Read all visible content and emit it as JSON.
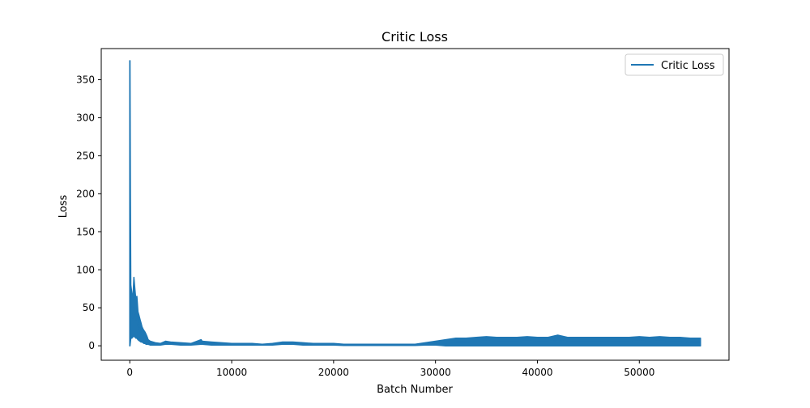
{
  "chart_data": {
    "type": "line",
    "title": "Critic Loss",
    "xlabel": "Batch Number",
    "ylabel": "Loss",
    "xlim": [
      -2800,
      58800
    ],
    "ylim": [
      -19,
      391
    ],
    "xticks": [
      0,
      10000,
      20000,
      30000,
      40000,
      50000
    ],
    "yticks": [
      0,
      50,
      100,
      150,
      200,
      250,
      300,
      350
    ],
    "grid": false,
    "legend_position": "top-right",
    "series": [
      {
        "name": "Critic Loss",
        "color": "#1f77b4",
        "x": [
          0,
          20,
          60,
          100,
          200,
          300,
          400,
          500,
          600,
          700,
          800,
          900,
          1000,
          1100,
          1200,
          1300,
          1400,
          1500,
          1600,
          1700,
          1800,
          2000,
          2500,
          3000,
          3500,
          4000,
          5000,
          6000,
          7000,
          7100,
          8000,
          9000,
          10000,
          11000,
          12000,
          13000,
          14000,
          15000,
          16000,
          17000,
          18000,
          19000,
          20000,
          21000,
          22000,
          23000,
          24000,
          25000,
          26000,
          27000,
          28000,
          29000,
          30000,
          31000,
          32000,
          33000,
          34000,
          35000,
          36000,
          37000,
          38000,
          39000,
          40000,
          41000,
          42000,
          43000,
          44000,
          45000,
          46000,
          47000,
          48000,
          49000,
          50000,
          51000,
          52000,
          53000,
          54000,
          55000,
          56000
        ],
        "y_high": [
          375,
          375,
          200,
          80,
          70,
          60,
          90,
          75,
          60,
          65,
          45,
          40,
          35,
          30,
          25,
          22,
          20,
          18,
          15,
          12,
          8,
          6,
          4,
          3,
          6,
          5,
          4,
          3,
          8,
          6,
          5,
          4,
          3,
          3,
          3,
          2,
          3,
          5,
          5,
          4,
          3,
          3,
          3,
          2,
          2,
          2,
          2,
          2,
          2,
          2,
          2,
          4,
          6,
          8,
          10,
          10,
          11,
          12,
          11,
          11,
          11,
          12,
          11,
          11,
          14,
          11,
          11,
          11,
          11,
          11,
          11,
          11,
          12,
          11,
          12,
          11,
          11,
          10,
          10
        ],
        "y_low": [
          0,
          0,
          5,
          10,
          10,
          12,
          12,
          12,
          10,
          10,
          8,
          7,
          6,
          5,
          5,
          4,
          3,
          3,
          2,
          2,
          2,
          1,
          1,
          1,
          2,
          2,
          1,
          1,
          2,
          2,
          1,
          1,
          1,
          1,
          1,
          1,
          1,
          2,
          2,
          1,
          1,
          1,
          1,
          0.5,
          0.5,
          0.5,
          0.5,
          0.5,
          0.5,
          0.5,
          0.5,
          1,
          1,
          0,
          0,
          0,
          0,
          0,
          0,
          0,
          0,
          0,
          0,
          0,
          0,
          0,
          0,
          0,
          0,
          0,
          0,
          0,
          0,
          0,
          0,
          0,
          0,
          0,
          0
        ]
      }
    ]
  }
}
